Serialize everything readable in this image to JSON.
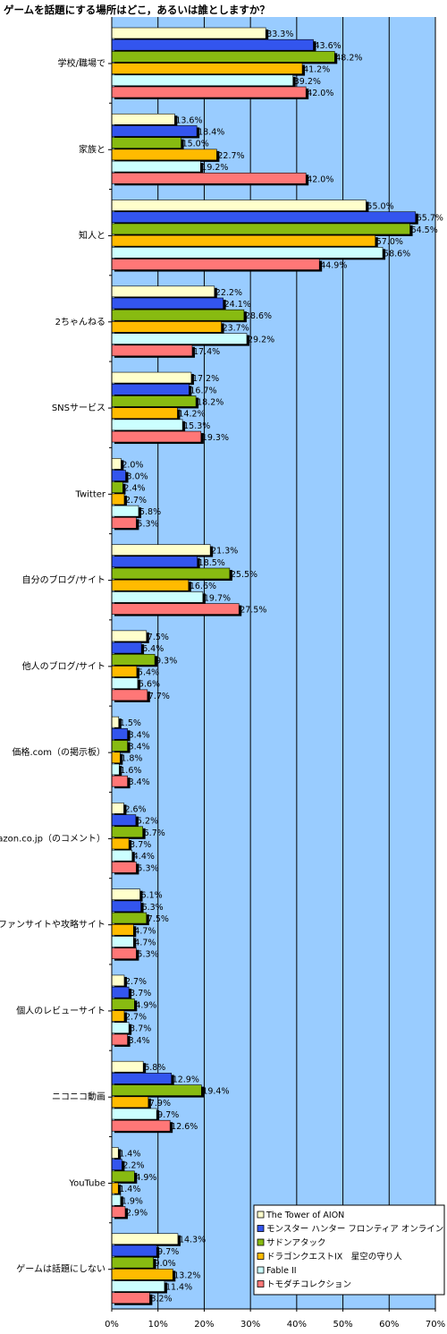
{
  "chart_data": {
    "type": "bar",
    "orientation": "horizontal",
    "title": "ゲームを話題にする場所はどこ，あるいは誰としますか？",
    "categories": [
      "学校/職場で",
      "家族と",
      "知人と",
      "2ちゃんねる",
      "SNSサービス",
      "Twitter",
      "自分のブログ/サイト",
      "他人のブログ/サイト",
      "価格.com（の掲示板）",
      "Amazon.co.jp（のコメント）",
      "ファンサイトや攻略サイト",
      "個人のレビューサイト",
      "ニコニコ動画",
      "YouTube",
      "ゲームは話題にしない"
    ],
    "series": [
      {
        "name": "The Tower of AION",
        "color": "#ffffcc",
        "values": [
          33.3,
          13.6,
          55.0,
          22.2,
          17.2,
          2.0,
          21.3,
          7.5,
          1.5,
          2.6,
          6.1,
          2.7,
          6.8,
          1.4,
          14.3
        ]
      },
      {
        "name": "モンスター ハンター フロンティア オンライン",
        "color": "#3355ee",
        "values": [
          43.6,
          18.4,
          65.7,
          24.1,
          16.7,
          3.0,
          18.5,
          6.4,
          3.4,
          5.2,
          6.3,
          3.7,
          12.9,
          2.2,
          9.7
        ]
      },
      {
        "name": "サドンアタック",
        "color": "#88bb11",
        "values": [
          48.2,
          15.0,
          64.5,
          28.6,
          18.2,
          2.4,
          25.5,
          9.3,
          3.4,
          6.7,
          7.5,
          4.9,
          19.4,
          4.9,
          9.0
        ]
      },
      {
        "name": "ドラゴンクエストIX　星空の守り人",
        "color": "#ffbb00",
        "values": [
          41.2,
          22.7,
          57.0,
          23.7,
          14.2,
          2.7,
          16.6,
          5.4,
          1.8,
          3.7,
          4.7,
          2.7,
          7.9,
          1.4,
          13.2
        ]
      },
      {
        "name": "Fable II",
        "color": "#ccffff",
        "values": [
          39.2,
          19.2,
          58.6,
          29.2,
          15.3,
          5.8,
          19.7,
          5.6,
          1.6,
          4.4,
          4.7,
          3.7,
          9.7,
          1.9,
          11.4
        ]
      },
      {
        "name": "トモダチコレクション",
        "color": "#ff7777",
        "values": [
          42.0,
          42.0,
          44.9,
          17.4,
          19.3,
          5.3,
          27.5,
          7.7,
          3.4,
          5.3,
          5.3,
          3.4,
          12.6,
          2.9,
          8.2
        ]
      }
    ],
    "xlim": [
      0,
      70
    ],
    "xticks": [
      0,
      10,
      20,
      30,
      40,
      50,
      60,
      70
    ],
    "value_suffix": "%",
    "grid": true,
    "legend": "bottom-right",
    "colors": {
      "plot_background": "#99ccff",
      "grid": "#000000"
    }
  }
}
